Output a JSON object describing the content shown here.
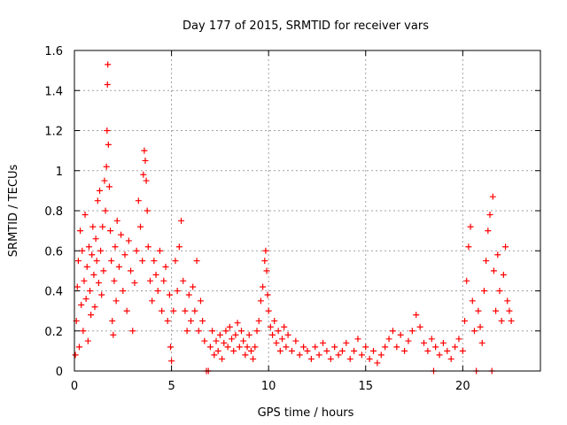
{
  "chart_data": {
    "type": "scatter",
    "title": "Day 177 of 2015, SRMTID for receiver vars",
    "xlabel": "GPS time / hours",
    "ylabel": "SRMTID / TECUs",
    "xlim": [
      0,
      24
    ],
    "ylim": [
      0,
      1.6
    ],
    "xticks": [
      0,
      5,
      10,
      15,
      20
    ],
    "xtick_labels": [
      "0",
      "5",
      "10",
      "15",
      "20"
    ],
    "yticks": [
      0,
      0.2,
      0.4,
      0.6,
      0.8,
      1,
      1.2,
      1.4,
      1.6
    ],
    "ytick_labels": [
      "0",
      "0.2",
      "0.4",
      "0.6",
      "0.8",
      "1",
      "1.2",
      "1.4",
      "1.6"
    ],
    "grid": true,
    "marker": "+",
    "color": "#ff0000",
    "series": [
      {
        "name": "SRMTID",
        "points": [
          [
            0.05,
            0.08
          ],
          [
            0.1,
            0.25
          ],
          [
            0.15,
            0.42
          ],
          [
            0.2,
            0.55
          ],
          [
            0.25,
            0.12
          ],
          [
            0.3,
            0.7
          ],
          [
            0.35,
            0.33
          ],
          [
            0.4,
            0.6
          ],
          [
            0.45,
            0.2
          ],
          [
            0.5,
            0.45
          ],
          [
            0.55,
            0.78
          ],
          [
            0.6,
            0.36
          ],
          [
            0.65,
            0.52
          ],
          [
            0.7,
            0.15
          ],
          [
            0.75,
            0.62
          ],
          [
            0.8,
            0.4
          ],
          [
            0.85,
            0.28
          ],
          [
            0.9,
            0.58
          ],
          [
            0.95,
            0.72
          ],
          [
            1.0,
            0.48
          ],
          [
            1.05,
            0.32
          ],
          [
            1.1,
            0.66
          ],
          [
            1.15,
            0.55
          ],
          [
            1.2,
            0.85
          ],
          [
            1.25,
            0.44
          ],
          [
            1.3,
            0.9
          ],
          [
            1.35,
            0.6
          ],
          [
            1.4,
            0.38
          ],
          [
            1.45,
            0.72
          ],
          [
            1.5,
            0.5
          ],
          [
            1.55,
            0.95
          ],
          [
            1.6,
            0.8
          ],
          [
            1.65,
            1.02
          ],
          [
            1.68,
            1.2
          ],
          [
            1.7,
            1.43
          ],
          [
            1.72,
            1.53
          ],
          [
            1.75,
            1.13
          ],
          [
            1.8,
            0.92
          ],
          [
            1.85,
            0.7
          ],
          [
            1.9,
            0.55
          ],
          [
            1.95,
            0.25
          ],
          [
            2.0,
            0.18
          ],
          [
            2.05,
            0.45
          ],
          [
            2.1,
            0.62
          ],
          [
            2.15,
            0.35
          ],
          [
            2.2,
            0.75
          ],
          [
            2.3,
            0.52
          ],
          [
            2.4,
            0.68
          ],
          [
            2.5,
            0.4
          ],
          [
            2.6,
            0.58
          ],
          [
            2.7,
            0.3
          ],
          [
            2.8,
            0.65
          ],
          [
            2.9,
            0.5
          ],
          [
            3.0,
            0.2
          ],
          [
            3.1,
            0.44
          ],
          [
            3.2,
            0.6
          ],
          [
            3.3,
            0.85
          ],
          [
            3.4,
            0.72
          ],
          [
            3.5,
            0.55
          ],
          [
            3.55,
            0.98
          ],
          [
            3.6,
            1.1
          ],
          [
            3.65,
            1.05
          ],
          [
            3.7,
            0.95
          ],
          [
            3.75,
            0.8
          ],
          [
            3.8,
            0.62
          ],
          [
            3.9,
            0.45
          ],
          [
            4.0,
            0.35
          ],
          [
            4.1,
            0.55
          ],
          [
            4.2,
            0.48
          ],
          [
            4.3,
            0.4
          ],
          [
            4.4,
            0.6
          ],
          [
            4.5,
            0.3
          ],
          [
            4.6,
            0.45
          ],
          [
            4.7,
            0.52
          ],
          [
            4.8,
            0.25
          ],
          [
            4.9,
            0.38
          ],
          [
            4.95,
            0.12
          ],
          [
            5.0,
            0.05
          ],
          [
            5.1,
            0.3
          ],
          [
            5.2,
            0.55
          ],
          [
            5.3,
            0.4
          ],
          [
            5.4,
            0.62
          ],
          [
            5.5,
            0.75
          ],
          [
            5.6,
            0.45
          ],
          [
            5.7,
            0.3
          ],
          [
            5.8,
            0.2
          ],
          [
            5.9,
            0.38
          ],
          [
            6.0,
            0.25
          ],
          [
            6.1,
            0.42
          ],
          [
            6.2,
            0.3
          ],
          [
            6.3,
            0.55
          ],
          [
            6.4,
            0.2
          ],
          [
            6.5,
            0.35
          ],
          [
            6.6,
            0.25
          ],
          [
            6.7,
            0.15
          ],
          [
            6.8,
            0.0
          ],
          [
            6.9,
            0.0
          ],
          [
            7.0,
            0.12
          ],
          [
            7.1,
            0.2
          ],
          [
            7.2,
            0.08
          ],
          [
            7.3,
            0.15
          ],
          [
            7.4,
            0.1
          ],
          [
            7.5,
            0.18
          ],
          [
            7.6,
            0.06
          ],
          [
            7.7,
            0.14
          ],
          [
            7.8,
            0.2
          ],
          [
            7.9,
            0.12
          ],
          [
            8.0,
            0.22
          ],
          [
            8.1,
            0.16
          ],
          [
            8.2,
            0.1
          ],
          [
            8.3,
            0.18
          ],
          [
            8.4,
            0.24
          ],
          [
            8.5,
            0.12
          ],
          [
            8.6,
            0.2
          ],
          [
            8.7,
            0.15
          ],
          [
            8.8,
            0.08
          ],
          [
            8.9,
            0.12
          ],
          [
            9.0,
            0.18
          ],
          [
            9.1,
            0.1
          ],
          [
            9.2,
            0.06
          ],
          [
            9.3,
            0.12
          ],
          [
            9.4,
            0.2
          ],
          [
            9.5,
            0.25
          ],
          [
            9.6,
            0.35
          ],
          [
            9.7,
            0.42
          ],
          [
            9.8,
            0.55
          ],
          [
            9.85,
            0.6
          ],
          [
            9.9,
            0.5
          ],
          [
            9.95,
            0.38
          ],
          [
            10.0,
            0.3
          ],
          [
            10.1,
            0.22
          ],
          [
            10.2,
            0.18
          ],
          [
            10.3,
            0.25
          ],
          [
            10.4,
            0.14
          ],
          [
            10.5,
            0.2
          ],
          [
            10.6,
            0.1
          ],
          [
            10.7,
            0.16
          ],
          [
            10.8,
            0.22
          ],
          [
            10.9,
            0.12
          ],
          [
            11.0,
            0.18
          ],
          [
            11.2,
            0.1
          ],
          [
            11.4,
            0.15
          ],
          [
            11.6,
            0.08
          ],
          [
            11.8,
            0.12
          ],
          [
            12.0,
            0.1
          ],
          [
            12.2,
            0.06
          ],
          [
            12.4,
            0.12
          ],
          [
            12.6,
            0.08
          ],
          [
            12.8,
            0.14
          ],
          [
            13.0,
            0.1
          ],
          [
            13.2,
            0.06
          ],
          [
            13.4,
            0.12
          ],
          [
            13.6,
            0.08
          ],
          [
            13.8,
            0.1
          ],
          [
            14.0,
            0.14
          ],
          [
            14.2,
            0.06
          ],
          [
            14.4,
            0.1
          ],
          [
            14.6,
            0.16
          ],
          [
            14.8,
            0.08
          ],
          [
            15.0,
            0.12
          ],
          [
            15.2,
            0.06
          ],
          [
            15.4,
            0.1
          ],
          [
            15.6,
            0.04
          ],
          [
            15.8,
            0.08
          ],
          [
            16.0,
            0.12
          ],
          [
            16.2,
            0.16
          ],
          [
            16.4,
            0.2
          ],
          [
            16.6,
            0.12
          ],
          [
            16.8,
            0.18
          ],
          [
            17.0,
            0.1
          ],
          [
            17.2,
            0.15
          ],
          [
            17.4,
            0.2
          ],
          [
            17.6,
            0.28
          ],
          [
            17.8,
            0.22
          ],
          [
            18.0,
            0.14
          ],
          [
            18.2,
            0.1
          ],
          [
            18.4,
            0.16
          ],
          [
            18.5,
            0.0
          ],
          [
            18.6,
            0.12
          ],
          [
            18.8,
            0.08
          ],
          [
            19.0,
            0.14
          ],
          [
            19.2,
            0.1
          ],
          [
            19.4,
            0.06
          ],
          [
            19.6,
            0.12
          ],
          [
            19.8,
            0.16
          ],
          [
            20.0,
            0.1
          ],
          [
            20.1,
            0.25
          ],
          [
            20.2,
            0.45
          ],
          [
            20.3,
            0.62
          ],
          [
            20.4,
            0.72
          ],
          [
            20.5,
            0.35
          ],
          [
            20.6,
            0.2
          ],
          [
            20.7,
            0.0
          ],
          [
            20.8,
            0.3
          ],
          [
            20.9,
            0.22
          ],
          [
            21.0,
            0.14
          ],
          [
            21.1,
            0.4
          ],
          [
            21.2,
            0.55
          ],
          [
            21.3,
            0.7
          ],
          [
            21.4,
            0.78
          ],
          [
            21.5,
            0.0
          ],
          [
            21.55,
            0.87
          ],
          [
            21.6,
            0.5
          ],
          [
            21.7,
            0.3
          ],
          [
            21.8,
            0.58
          ],
          [
            21.9,
            0.4
          ],
          [
            22.0,
            0.25
          ],
          [
            22.1,
            0.48
          ],
          [
            22.2,
            0.62
          ],
          [
            22.3,
            0.35
          ],
          [
            22.4,
            0.3
          ],
          [
            22.5,
            0.25
          ]
        ]
      }
    ]
  }
}
